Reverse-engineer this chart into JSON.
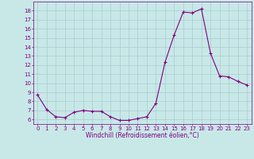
{
  "x": [
    0,
    1,
    2,
    3,
    4,
    5,
    6,
    7,
    8,
    9,
    10,
    11,
    12,
    13,
    14,
    15,
    16,
    17,
    18,
    19,
    20,
    21,
    22,
    23
  ],
  "y": [
    8.7,
    7.1,
    6.3,
    6.2,
    6.8,
    7.0,
    6.9,
    6.9,
    6.3,
    5.9,
    5.9,
    6.1,
    6.3,
    7.8,
    12.3,
    15.3,
    17.85,
    17.75,
    18.2,
    13.3,
    10.8,
    10.7,
    10.2,
    9.8
  ],
  "line_color": "#800080",
  "marker": "+",
  "bg_color": "#c8e8e8",
  "grid_color": "#a8cccc",
  "xlabel": "Windchill (Refroidissement éolien,°C)",
  "ylim": [
    5.5,
    19.0
  ],
  "xlim": [
    -0.5,
    23.5
  ],
  "yticks": [
    6,
    7,
    8,
    9,
    10,
    11,
    12,
    13,
    14,
    15,
    16,
    17,
    18
  ],
  "xticks": [
    0,
    1,
    2,
    3,
    4,
    5,
    6,
    7,
    8,
    9,
    10,
    11,
    12,
    13,
    14,
    15,
    16,
    17,
    18,
    19,
    20,
    21,
    22,
    23
  ],
  "tick_color": "#800080",
  "label_color": "#800080",
  "tick_fontsize": 5.0,
  "xlabel_fontsize": 5.5
}
